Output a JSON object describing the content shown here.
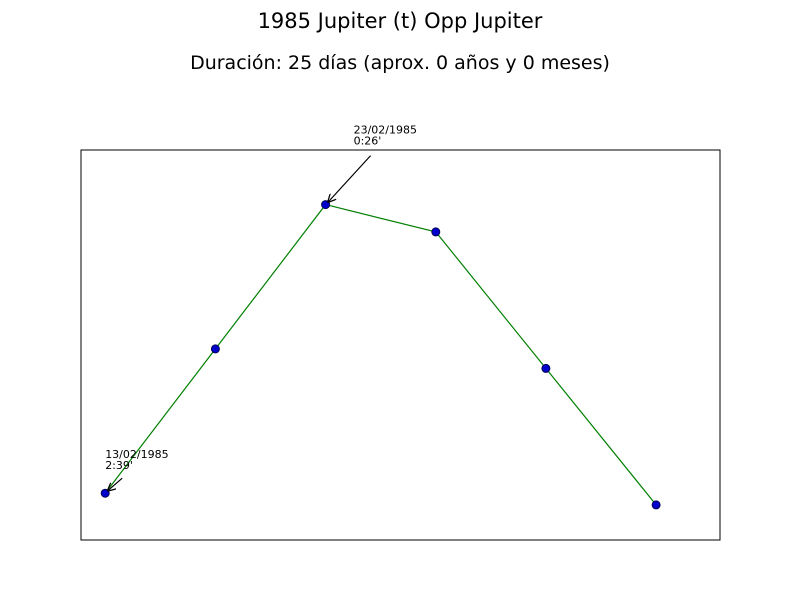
{
  "chart_data": {
    "type": "line",
    "title": "1985 Jupiter (t) Opp Jupiter",
    "subtitle": "Duración: 25 días (aprox. 0 años y 0 meses)",
    "x": [
      0,
      1,
      2,
      3,
      4,
      5
    ],
    "y": [
      0.04,
      0.41,
      0.78,
      0.71,
      0.36,
      0.01
    ],
    "xlim": [
      -0.22,
      5.58
    ],
    "ylim": [
      -0.08,
      0.92
    ],
    "grid": false,
    "colors": {
      "line": "#008000",
      "marker_fill": "#0000cc",
      "marker_edge": "#000055",
      "axes": "#000000"
    },
    "annotations": [
      {
        "point_index": 0,
        "lines": [
          "13/02/1985",
          "2:39'"
        ]
      },
      {
        "point_index": 2,
        "lines": [
          "23/02/1985",
          "0:26'"
        ]
      }
    ]
  }
}
